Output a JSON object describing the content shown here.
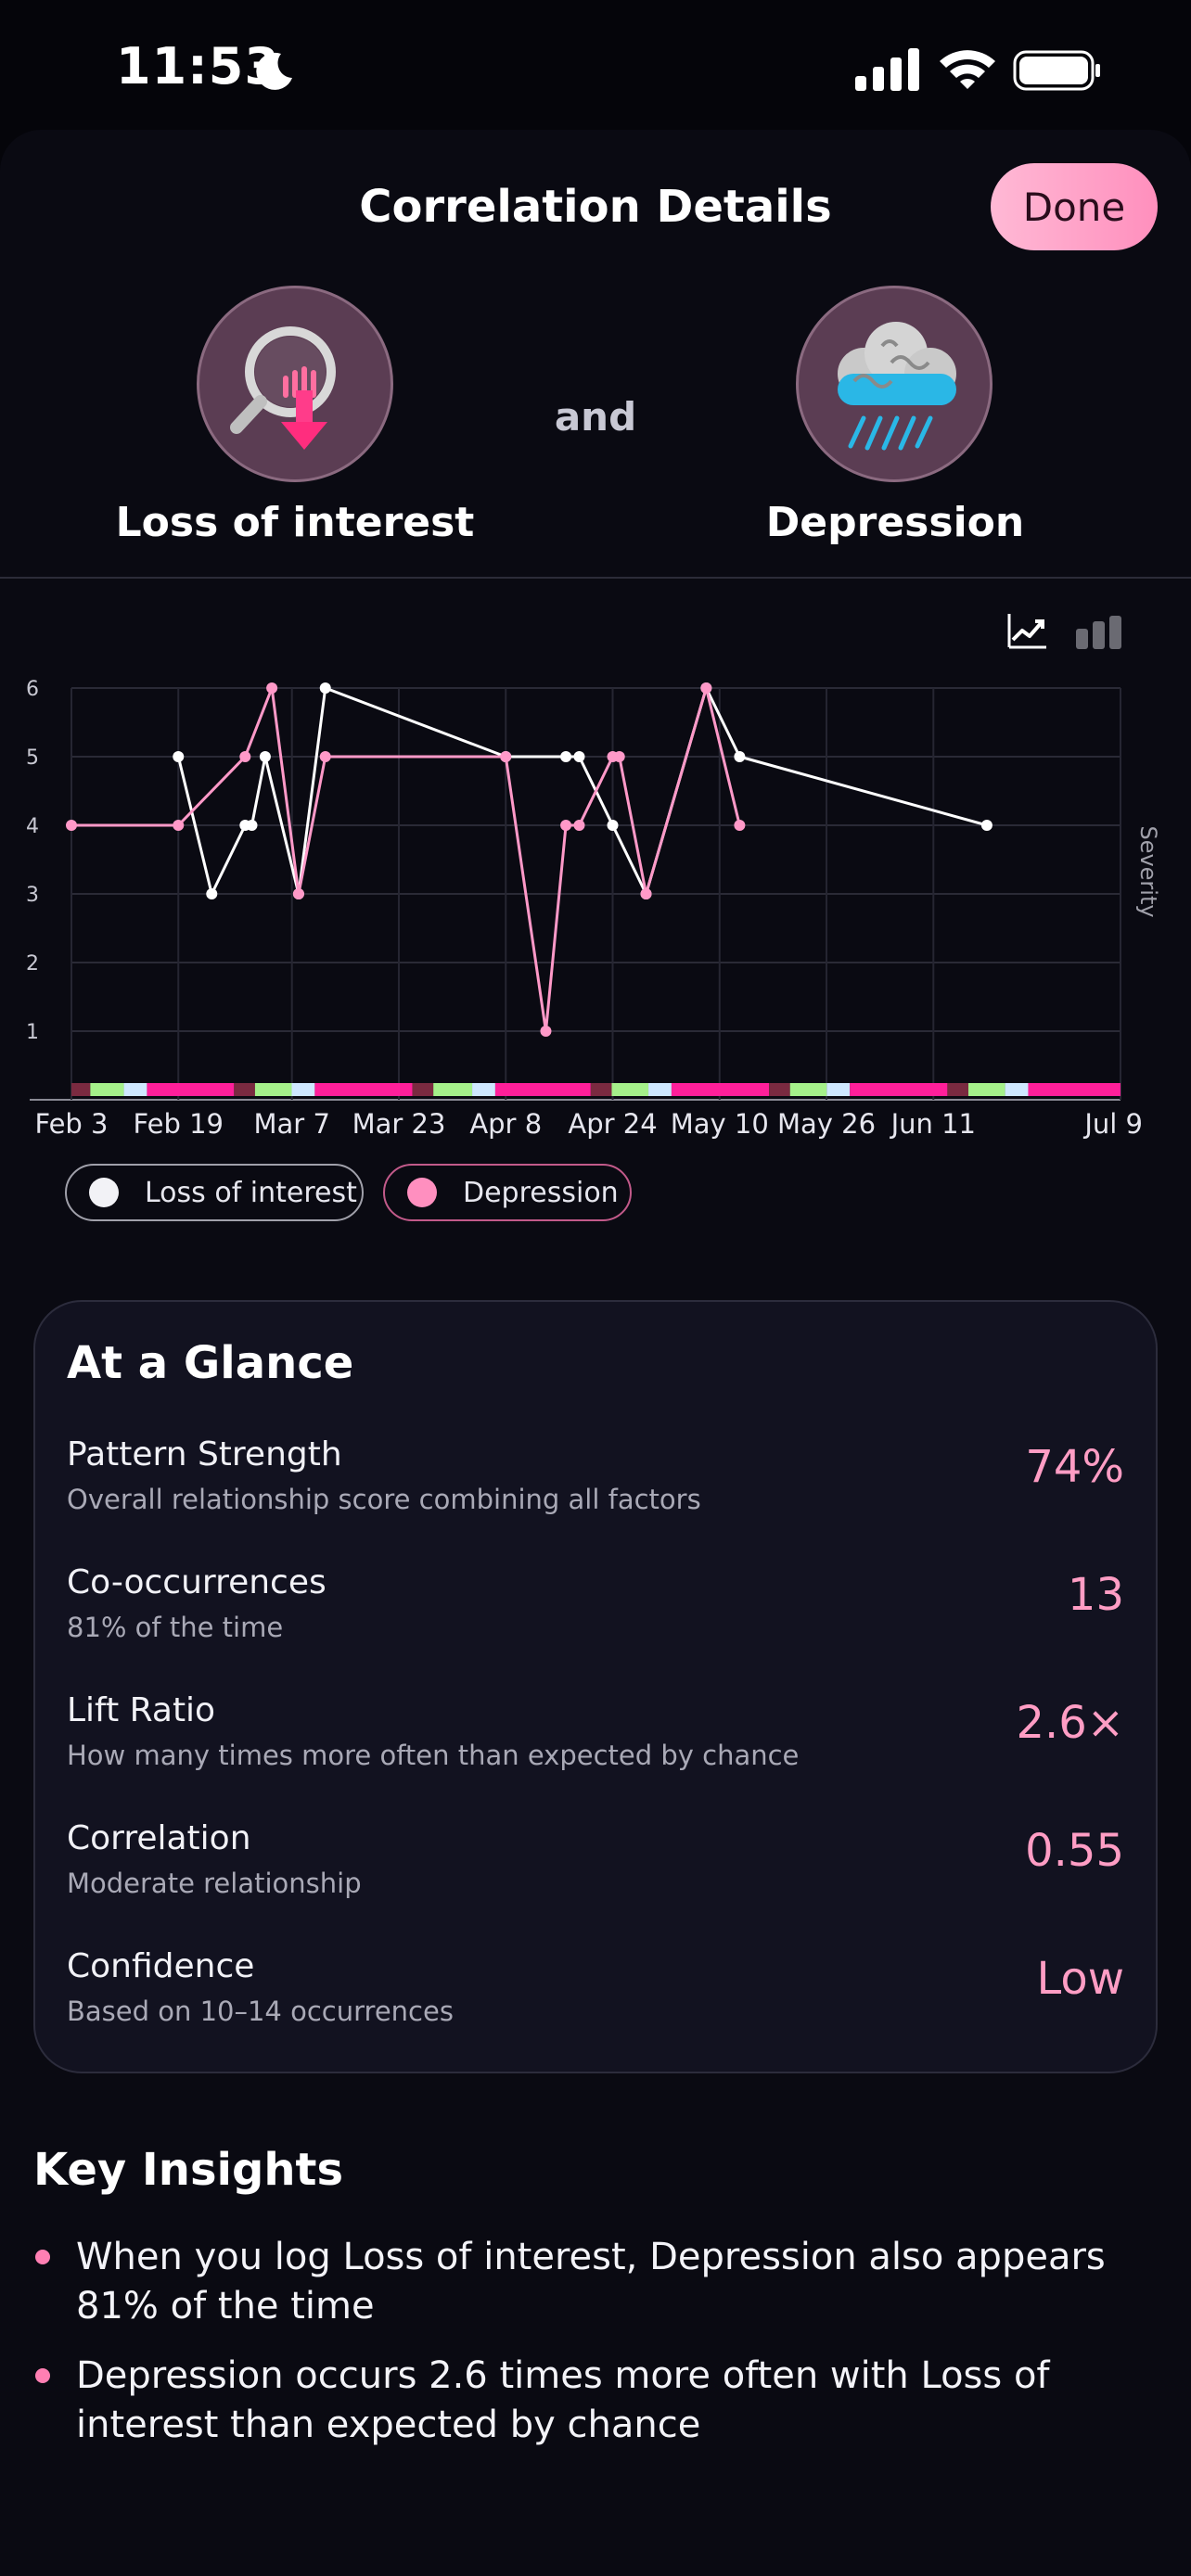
{
  "status_bar": {
    "time": "11:53"
  },
  "header": {
    "title": "Correlation Details",
    "done_label": "Done"
  },
  "pair": {
    "left_label": "Loss of interest",
    "connector": "and",
    "right_label": "Depression",
    "left_icon": "magnifier-down-arrow-icon",
    "right_icon": "rain-cloud-icon"
  },
  "chart_data": {
    "type": "line",
    "x_ticks": [
      "Feb 3",
      "Feb 19",
      "Mar 7",
      "Mar 23",
      "Apr 8",
      "Apr 24",
      "May 10",
      "May 26",
      "Jun 11",
      "Jul 9"
    ],
    "y_ticks": [
      "1",
      "2",
      "3",
      "4",
      "5",
      "6"
    ],
    "y_axis_label": "Severity",
    "ylim": [
      0,
      6
    ],
    "xlim": [
      "Feb 3",
      "Jul 9"
    ],
    "grid": true,
    "series": [
      {
        "name": "Loss of interest",
        "color": "#ffffff",
        "points": [
          {
            "x": "Feb 19",
            "y": 5
          },
          {
            "x": "Feb 24",
            "y": 3
          },
          {
            "x": "Feb 29",
            "y": 4
          },
          {
            "x": "Mar 1",
            "y": 4
          },
          {
            "x": "Mar 3",
            "y": 5
          },
          {
            "x": "Mar 8",
            "y": 3
          },
          {
            "x": "Mar 12",
            "y": 6
          },
          {
            "x": "Apr 8",
            "y": 5
          },
          {
            "x": "Apr 17",
            "y": 5
          },
          {
            "x": "Apr 19",
            "y": 5
          },
          {
            "x": "Apr 24",
            "y": 4
          },
          {
            "x": "Apr 29",
            "y": 3
          },
          {
            "x": "May 8",
            "y": 6
          },
          {
            "x": "May 13",
            "y": 5
          },
          {
            "x": "Jun 19",
            "y": 4
          }
        ]
      },
      {
        "name": "Depression",
        "color": "#ff99c8",
        "points": [
          {
            "x": "Feb 3",
            "y": 4
          },
          {
            "x": "Feb 19",
            "y": 4
          },
          {
            "x": "Feb 29",
            "y": 5
          },
          {
            "x": "Mar 4",
            "y": 6
          },
          {
            "x": "Mar 8",
            "y": 3
          },
          {
            "x": "Mar 12",
            "y": 5
          },
          {
            "x": "Apr 8",
            "y": 5
          },
          {
            "x": "Apr 14",
            "y": 1
          },
          {
            "x": "Apr 17",
            "y": 4
          },
          {
            "x": "Apr 19",
            "y": 4
          },
          {
            "x": "Apr 24",
            "y": 5
          },
          {
            "x": "Apr 25",
            "y": 5
          },
          {
            "x": "Apr 29",
            "y": 3
          },
          {
            "x": "May 8",
            "y": 6
          },
          {
            "x": "May 13",
            "y": 4
          }
        ]
      }
    ]
  },
  "chart_controls": {
    "line_icon": "line-chart-icon",
    "bar_icon": "bar-chart-icon"
  },
  "legend": [
    {
      "label": "Loss of interest",
      "color": "#f2f2f6"
    },
    {
      "label": "Depression",
      "color": "#ff8fbf"
    }
  ],
  "glance": {
    "title": "At a Glance",
    "metrics": [
      {
        "name": "Pattern Strength",
        "desc": "Overall relationship score combining all factors",
        "value": "74%"
      },
      {
        "name": "Co-occurrences",
        "desc": "81% of the time",
        "value": "13"
      },
      {
        "name": "Lift Ratio",
        "desc": "How many times more often than expected by chance",
        "value": "2.6×"
      },
      {
        "name": "Correlation",
        "desc": "Moderate relationship",
        "value": "0.55"
      },
      {
        "name": "Confidence",
        "desc": "Based on 10–14 occurrences",
        "value": "Low"
      }
    ]
  },
  "insights": {
    "title": "Key Insights",
    "items": [
      "When you log Loss of interest, Depression also appears 81% of the time",
      "Depression occurs 2.6 times more often with Loss of interest than expected by chance"
    ]
  }
}
